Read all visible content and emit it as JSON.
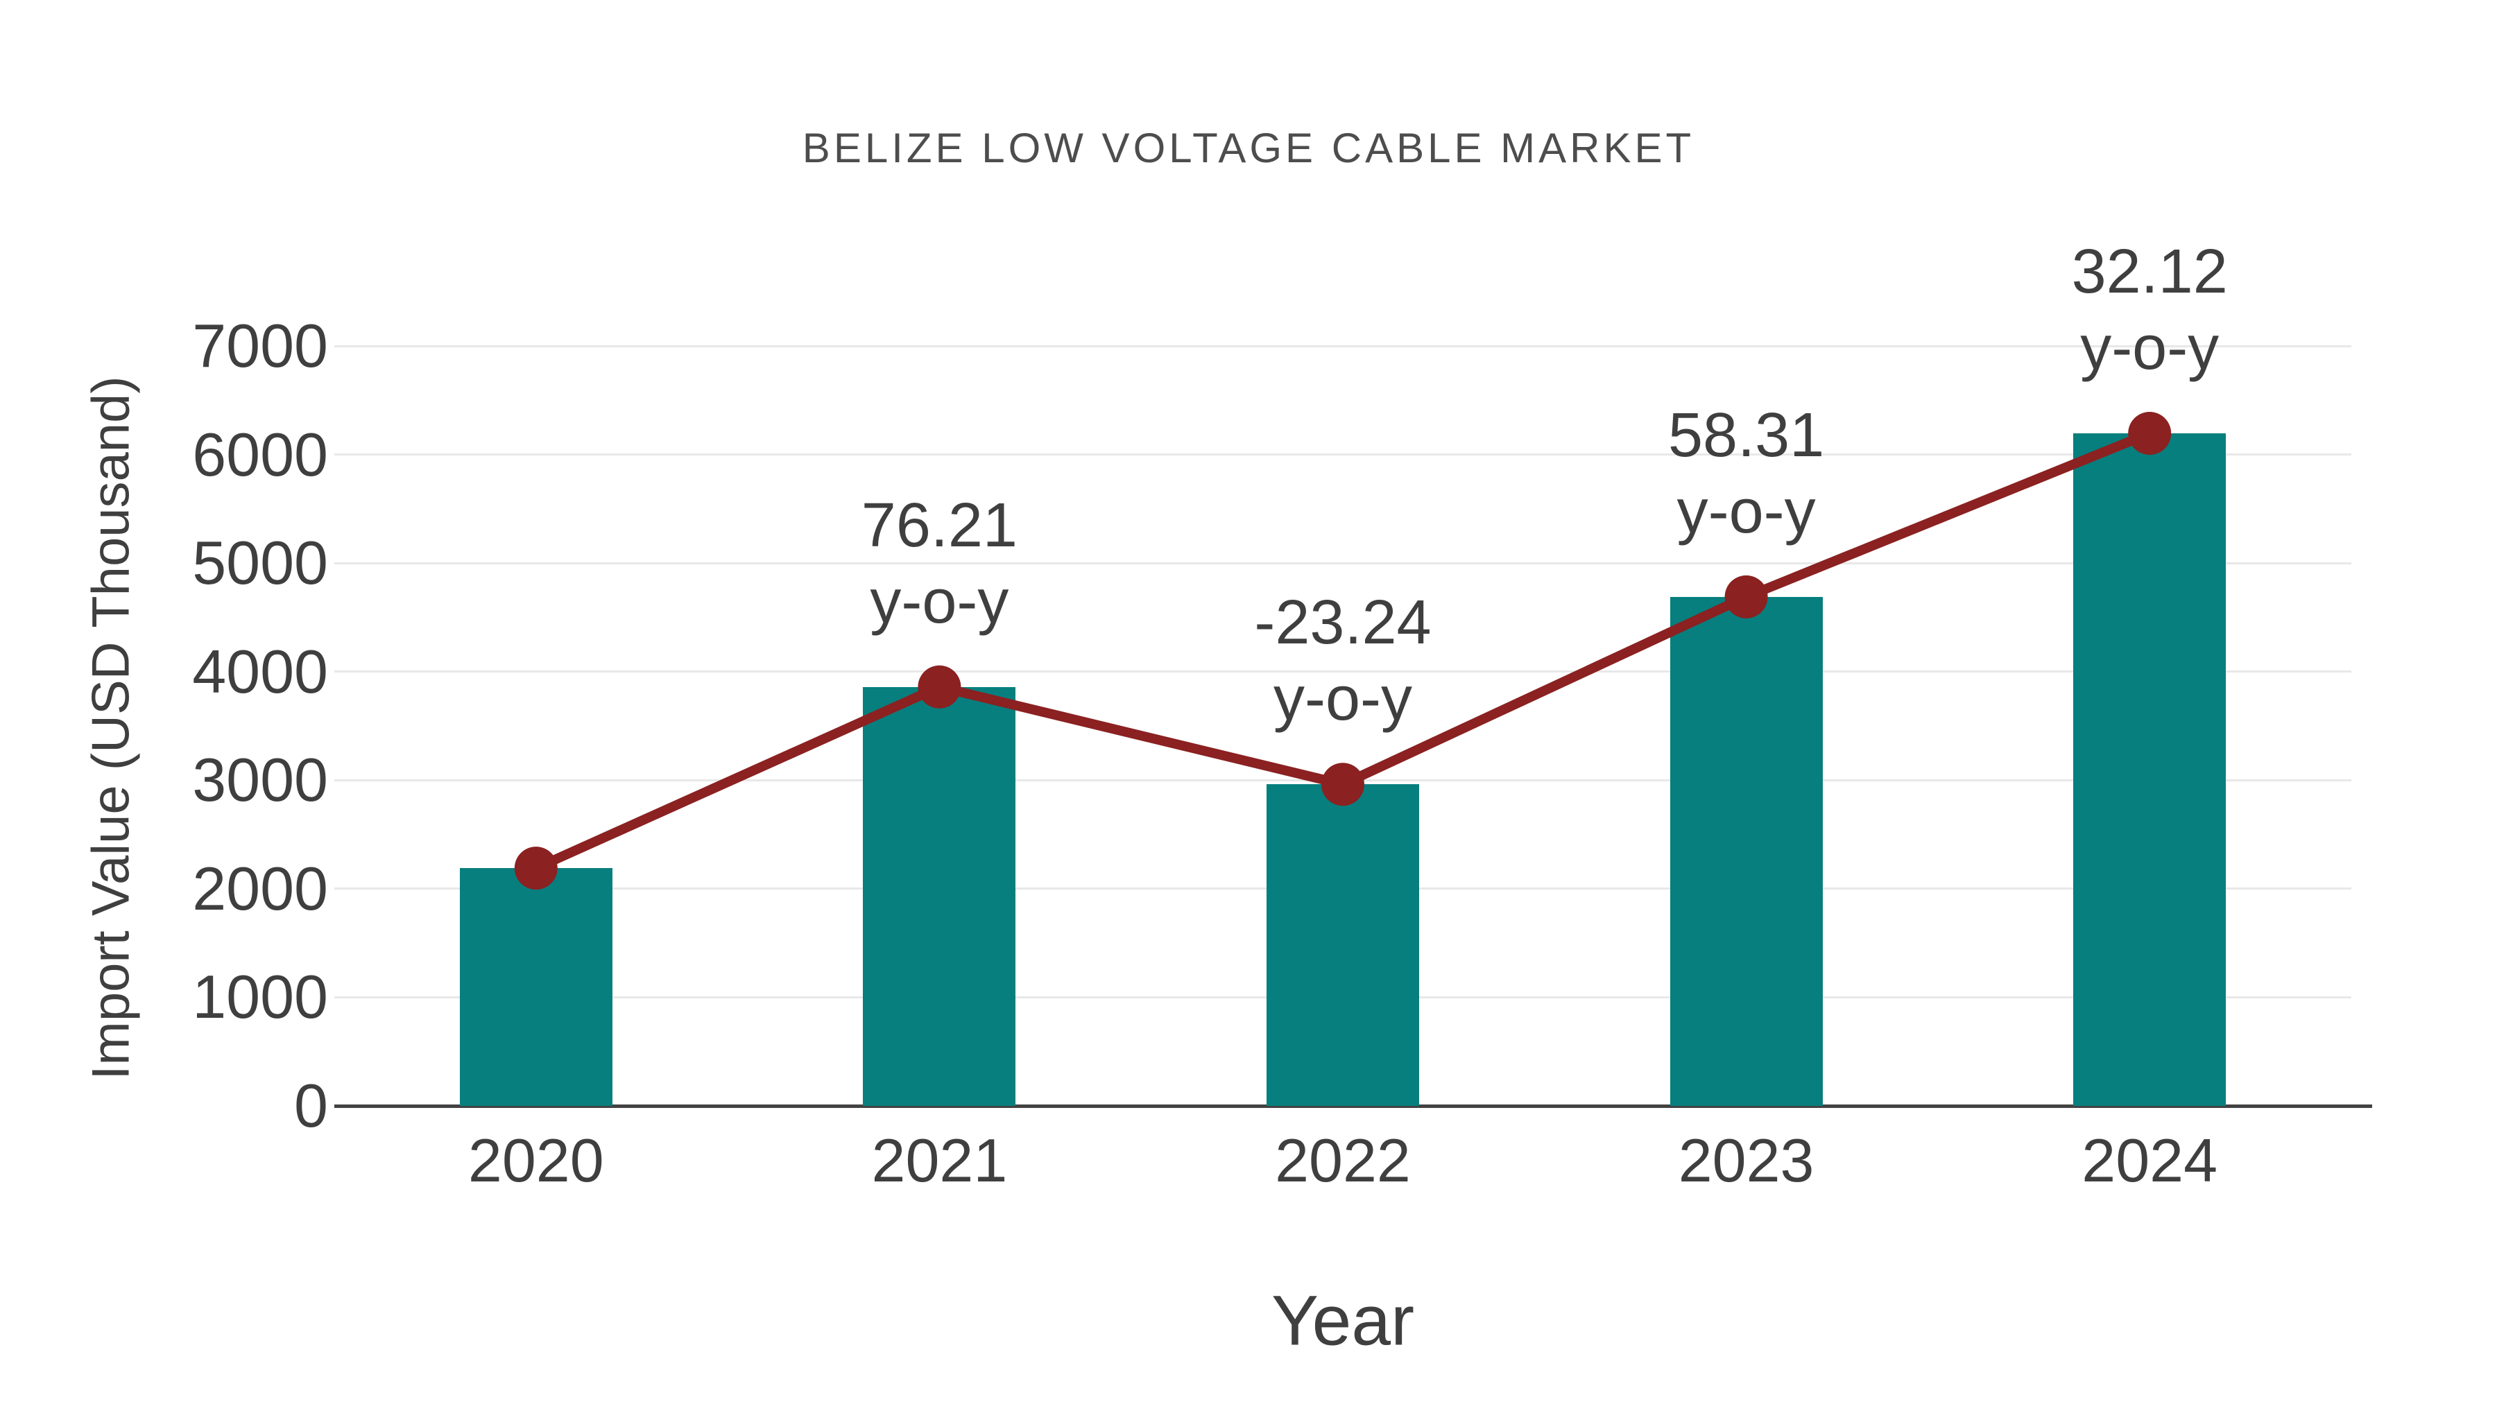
{
  "title": "BELIZE LOW VOLTAGE CABLE MARKET",
  "colors": {
    "background": "#ffffff",
    "bar": "#077f7e",
    "line": "#8b2121",
    "grid": "#e8e8e8",
    "axis": "#424242",
    "text": "#3f3f3f",
    "title_text": "#4d4d4d"
  },
  "chart_data": {
    "type": "bar",
    "title": "BELIZE LOW VOLTAGE CABLE MARKET",
    "xlabel": "Year",
    "ylabel": "Import Value (USD Thousand)",
    "categories": [
      "2020",
      "2021",
      "2022",
      "2023",
      "2024"
    ],
    "series": [
      {
        "name": "Import Value (USD Thousand)",
        "type": "bar",
        "color": "#077f7e",
        "values": [
          2190,
          3859,
          2962,
          4689,
          6195
        ]
      },
      {
        "name": "y-o-y change (%)",
        "type": "line",
        "color": "#8b2121",
        "marker": "circle",
        "values": [
          2190,
          3859,
          2962,
          4689,
          6195
        ],
        "labels": [
          "",
          "76.21",
          "-23.24",
          "58.31",
          "32.12"
        ],
        "label_suffix": "y-o-y"
      }
    ],
    "ylim": [
      0,
      7000
    ],
    "yticks": [
      0,
      1000,
      2000,
      3000,
      4000,
      5000,
      6000,
      7000
    ],
    "grid": "horizontal",
    "legend": "none"
  }
}
